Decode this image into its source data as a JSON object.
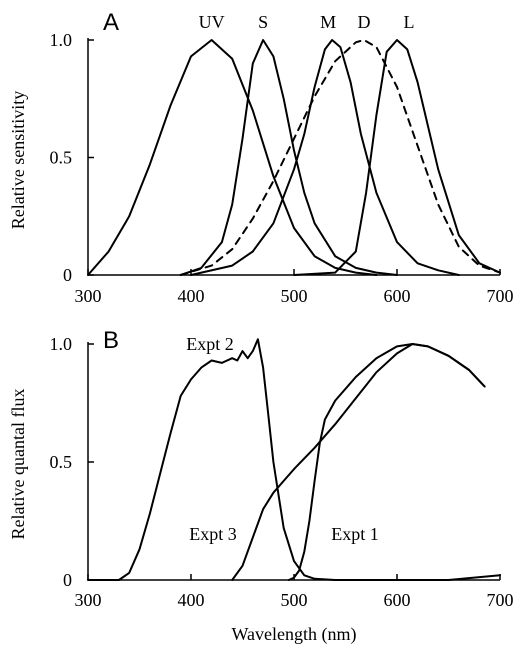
{
  "chart_data": [
    {
      "panel_label": "A",
      "type": "line",
      "xlabel": "",
      "ylabel": "Relative sensitivity",
      "xlim": [
        300,
        700
      ],
      "ylim": [
        0,
        1.0
      ],
      "x_ticks": [
        "300",
        "400",
        "500",
        "600",
        "700"
      ],
      "y_ticks": [
        "0",
        "0.5",
        "1.0"
      ],
      "grid": false,
      "legend": "none",
      "series": [
        {
          "name": "UV",
          "style": "solid",
          "peak_nm": 420,
          "x": [
            300,
            320,
            340,
            360,
            380,
            400,
            420,
            440,
            460,
            480,
            500,
            520,
            540,
            560,
            580
          ],
          "y": [
            0.0,
            0.1,
            0.25,
            0.47,
            0.72,
            0.93,
            1.0,
            0.92,
            0.7,
            0.42,
            0.2,
            0.08,
            0.03,
            0.01,
            0.0
          ]
        },
        {
          "name": "S",
          "style": "solid",
          "peak_nm": 470,
          "x": [
            390,
            410,
            430,
            440,
            450,
            460,
            470,
            480,
            490,
            500,
            510,
            520,
            540,
            560,
            580,
            600
          ],
          "y": [
            0.0,
            0.03,
            0.14,
            0.3,
            0.58,
            0.9,
            1.0,
            0.93,
            0.75,
            0.53,
            0.35,
            0.22,
            0.08,
            0.03,
            0.01,
            0.0
          ]
        },
        {
          "name": "M",
          "style": "solid",
          "peak_nm": 537,
          "x": [
            400,
            440,
            460,
            480,
            500,
            510,
            520,
            530,
            537,
            545,
            555,
            565,
            580,
            600,
            620,
            640,
            660
          ],
          "y": [
            0.0,
            0.04,
            0.1,
            0.22,
            0.45,
            0.6,
            0.8,
            0.96,
            1.0,
            0.97,
            0.82,
            0.6,
            0.35,
            0.14,
            0.05,
            0.02,
            0.0
          ]
        },
        {
          "name": "D",
          "style": "dashed",
          "peak_nm": 568,
          "x": [
            390,
            420,
            440,
            460,
            480,
            500,
            520,
            540,
            560,
            568,
            580,
            600,
            620,
            640,
            660,
            680,
            700
          ],
          "y": [
            0.0,
            0.04,
            0.11,
            0.24,
            0.4,
            0.58,
            0.76,
            0.91,
            0.99,
            1.0,
            0.97,
            0.8,
            0.55,
            0.3,
            0.12,
            0.04,
            0.01
          ]
        },
        {
          "name": "L",
          "style": "solid",
          "peak_nm": 600,
          "x": [
            500,
            540,
            560,
            570,
            580,
            590,
            600,
            610,
            620,
            640,
            660,
            680,
            700
          ],
          "y": [
            0.0,
            0.01,
            0.1,
            0.35,
            0.68,
            0.95,
            1.0,
            0.96,
            0.82,
            0.45,
            0.17,
            0.05,
            0.01
          ]
        }
      ]
    },
    {
      "panel_label": "B",
      "type": "line",
      "xlabel": "Wavelength (nm)",
      "ylabel": "Relative quantal flux",
      "xlim": [
        300,
        700
      ],
      "ylim": [
        0,
        1.0
      ],
      "x_ticks": [
        "300",
        "400",
        "500",
        "600",
        "700"
      ],
      "y_ticks": [
        "0",
        "0.5",
        "1.0"
      ],
      "grid": false,
      "legend": "none",
      "series": [
        {
          "name": "Expt 2",
          "label_text": "Expt 2",
          "x": [
            300,
            330,
            340,
            350,
            360,
            370,
            380,
            390,
            400,
            410,
            420,
            430,
            440,
            445,
            450,
            455,
            460,
            465,
            470,
            475,
            480,
            490,
            500,
            510,
            520,
            540,
            560,
            600,
            650,
            700
          ],
          "y": [
            0.0,
            0.0,
            0.03,
            0.13,
            0.28,
            0.45,
            0.62,
            0.78,
            0.85,
            0.9,
            0.93,
            0.92,
            0.94,
            0.93,
            0.97,
            0.94,
            0.97,
            1.02,
            0.9,
            0.7,
            0.5,
            0.22,
            0.08,
            0.02,
            0.005,
            0.0,
            0.0,
            0.0,
            0.0,
            0.02
          ]
        },
        {
          "name": "Expt 3",
          "label_text": "Expt 3",
          "x": [
            440,
            450,
            460,
            470,
            480,
            490,
            500,
            520,
            540,
            560,
            580,
            600,
            615,
            630,
            650,
            670,
            685
          ],
          "y": [
            0.0,
            0.06,
            0.18,
            0.3,
            0.37,
            0.42,
            0.47,
            0.56,
            0.66,
            0.77,
            0.88,
            0.96,
            1.0,
            0.99,
            0.95,
            0.89,
            0.82
          ]
        },
        {
          "name": "Expt 1",
          "label_text": "Expt 1",
          "x": [
            495,
            500,
            505,
            510,
            515,
            520,
            525,
            530,
            540,
            560,
            580,
            600,
            615,
            630,
            650,
            670,
            685
          ],
          "y": [
            0.0,
            0.01,
            0.04,
            0.12,
            0.25,
            0.42,
            0.58,
            0.68,
            0.76,
            0.86,
            0.94,
            0.99,
            1.0,
            0.99,
            0.95,
            0.89,
            0.82
          ]
        }
      ]
    }
  ]
}
